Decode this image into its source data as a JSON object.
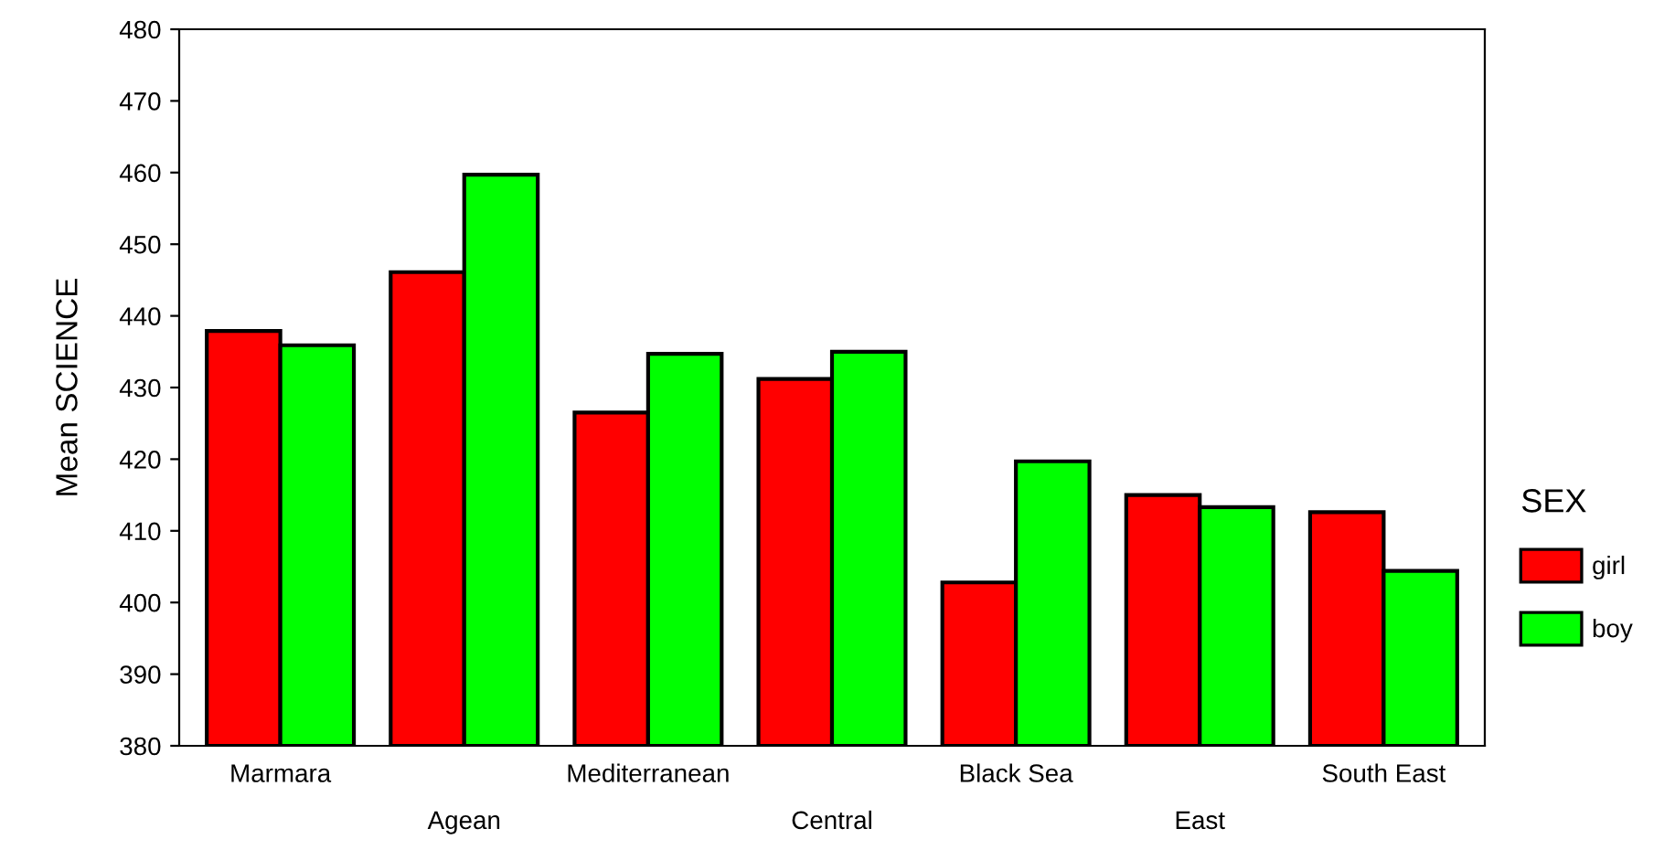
{
  "chart_data": {
    "type": "bar",
    "ylabel": "Mean SCIENCE",
    "legend_title": "SEX",
    "categories": [
      "Marmara",
      "Agean",
      "Mediterranean",
      "Central",
      "Black Sea",
      "East",
      "South East"
    ],
    "series": [
      {
        "name": "girl",
        "color": "#ff0000",
        "values": [
          437.9,
          446.1,
          426.5,
          431.2,
          402.8,
          415.0,
          412.6
        ]
      },
      {
        "name": "boy",
        "color": "#00ff00",
        "values": [
          435.9,
          459.7,
          434.7,
          435.0,
          419.7,
          413.3,
          404.4
        ]
      }
    ],
    "ylim": [
      380,
      480
    ],
    "yticks": [
      380,
      390,
      400,
      410,
      420,
      430,
      440,
      450,
      460,
      470,
      480
    ],
    "grid": false,
    "legend": "right"
  }
}
